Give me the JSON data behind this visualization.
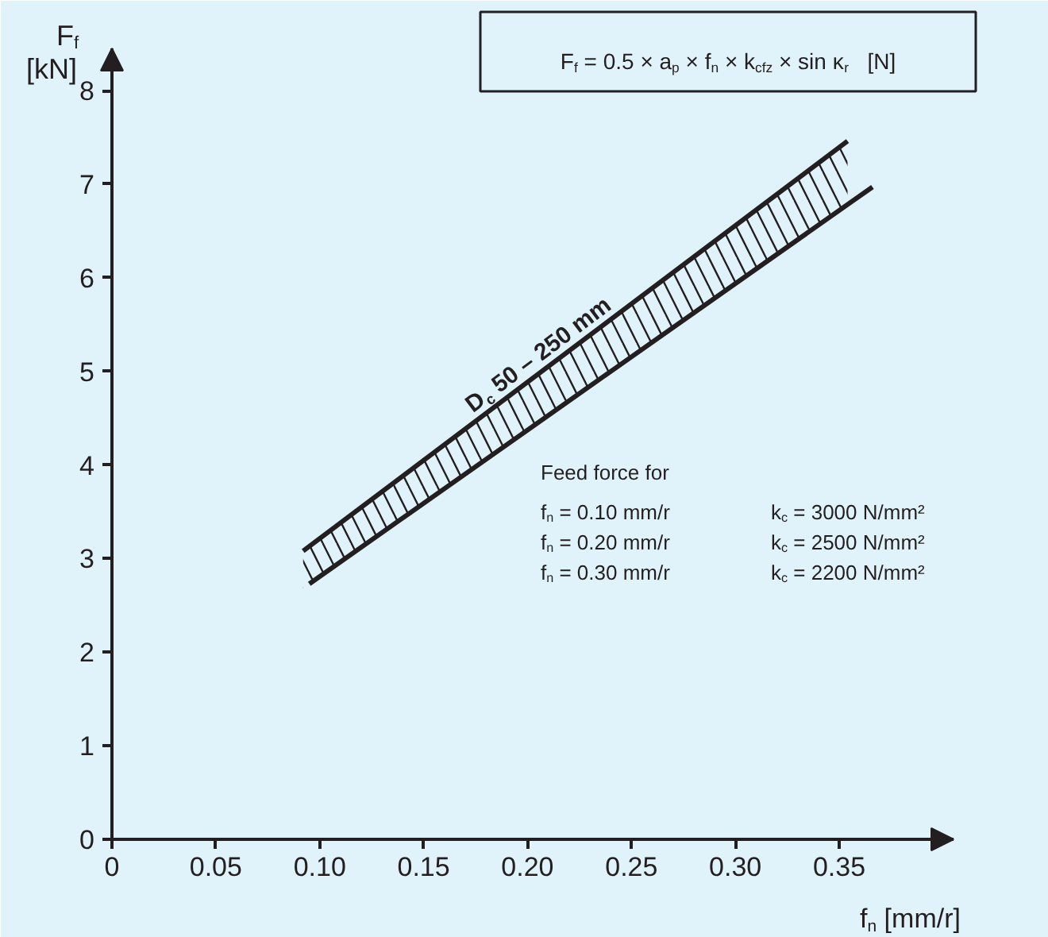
{
  "chart_data": {
    "type": "line",
    "xlabel": "f$_{n}$ [mm/r]",
    "ylabel": "F$_{f}$ [kN]",
    "series": [
      {
        "color": "#231f20",
        "x": [
          0.092,
          0.354
        ],
        "values": [
          3.08,
          7.46
        ],
        "lower": [
          2.68,
          6.78
        ],
        "upper": [
          3.08,
          7.46
        ]
      },
      {
        "color": "#231f20",
        "x": [
          0.095,
          0.366
        ],
        "values": [
          2.73,
          6.97
        ]
      }
    ],
    "xlim": [
      0,
      0.405
    ],
    "ylim": [
      0,
      8.45
    ],
    "xticks": [
      0,
      0.05,
      {
        "value": 0.1,
        "label": "0.10"
      },
      0.15,
      {
        "value": 0.2,
        "label": "0.20"
      },
      0.25,
      {
        "value": 0.3,
        "label": "0.30"
      },
      0.35
    ],
    "yticks": [
      0,
      1,
      2,
      3,
      4,
      5,
      6,
      7,
      8
    ],
    "annotations": [
      "F$_{f}$ = 0.5 × a$_{p}$ × f$_{n}$ × k$_{cfz}$ × sin κ$_{r}$   [N]",
      "Feed force for",
      "f$_{n}$ = 0.10 mm/r",
      "k$_{c}$ = 3000 N/mm²",
      "f$_{n}$ = 0.20 mm/r",
      "k$_{c}$ = 2500 N/mm²",
      "f$_{n}$ = 0.30 mm/r",
      "k$_{c}$ = 2200 N/mm²",
      "D$_{c}$ 50 – 250 mm"
    ],
    "grid": false,
    "line_style": "solid",
    "marker": "none"
  }
}
